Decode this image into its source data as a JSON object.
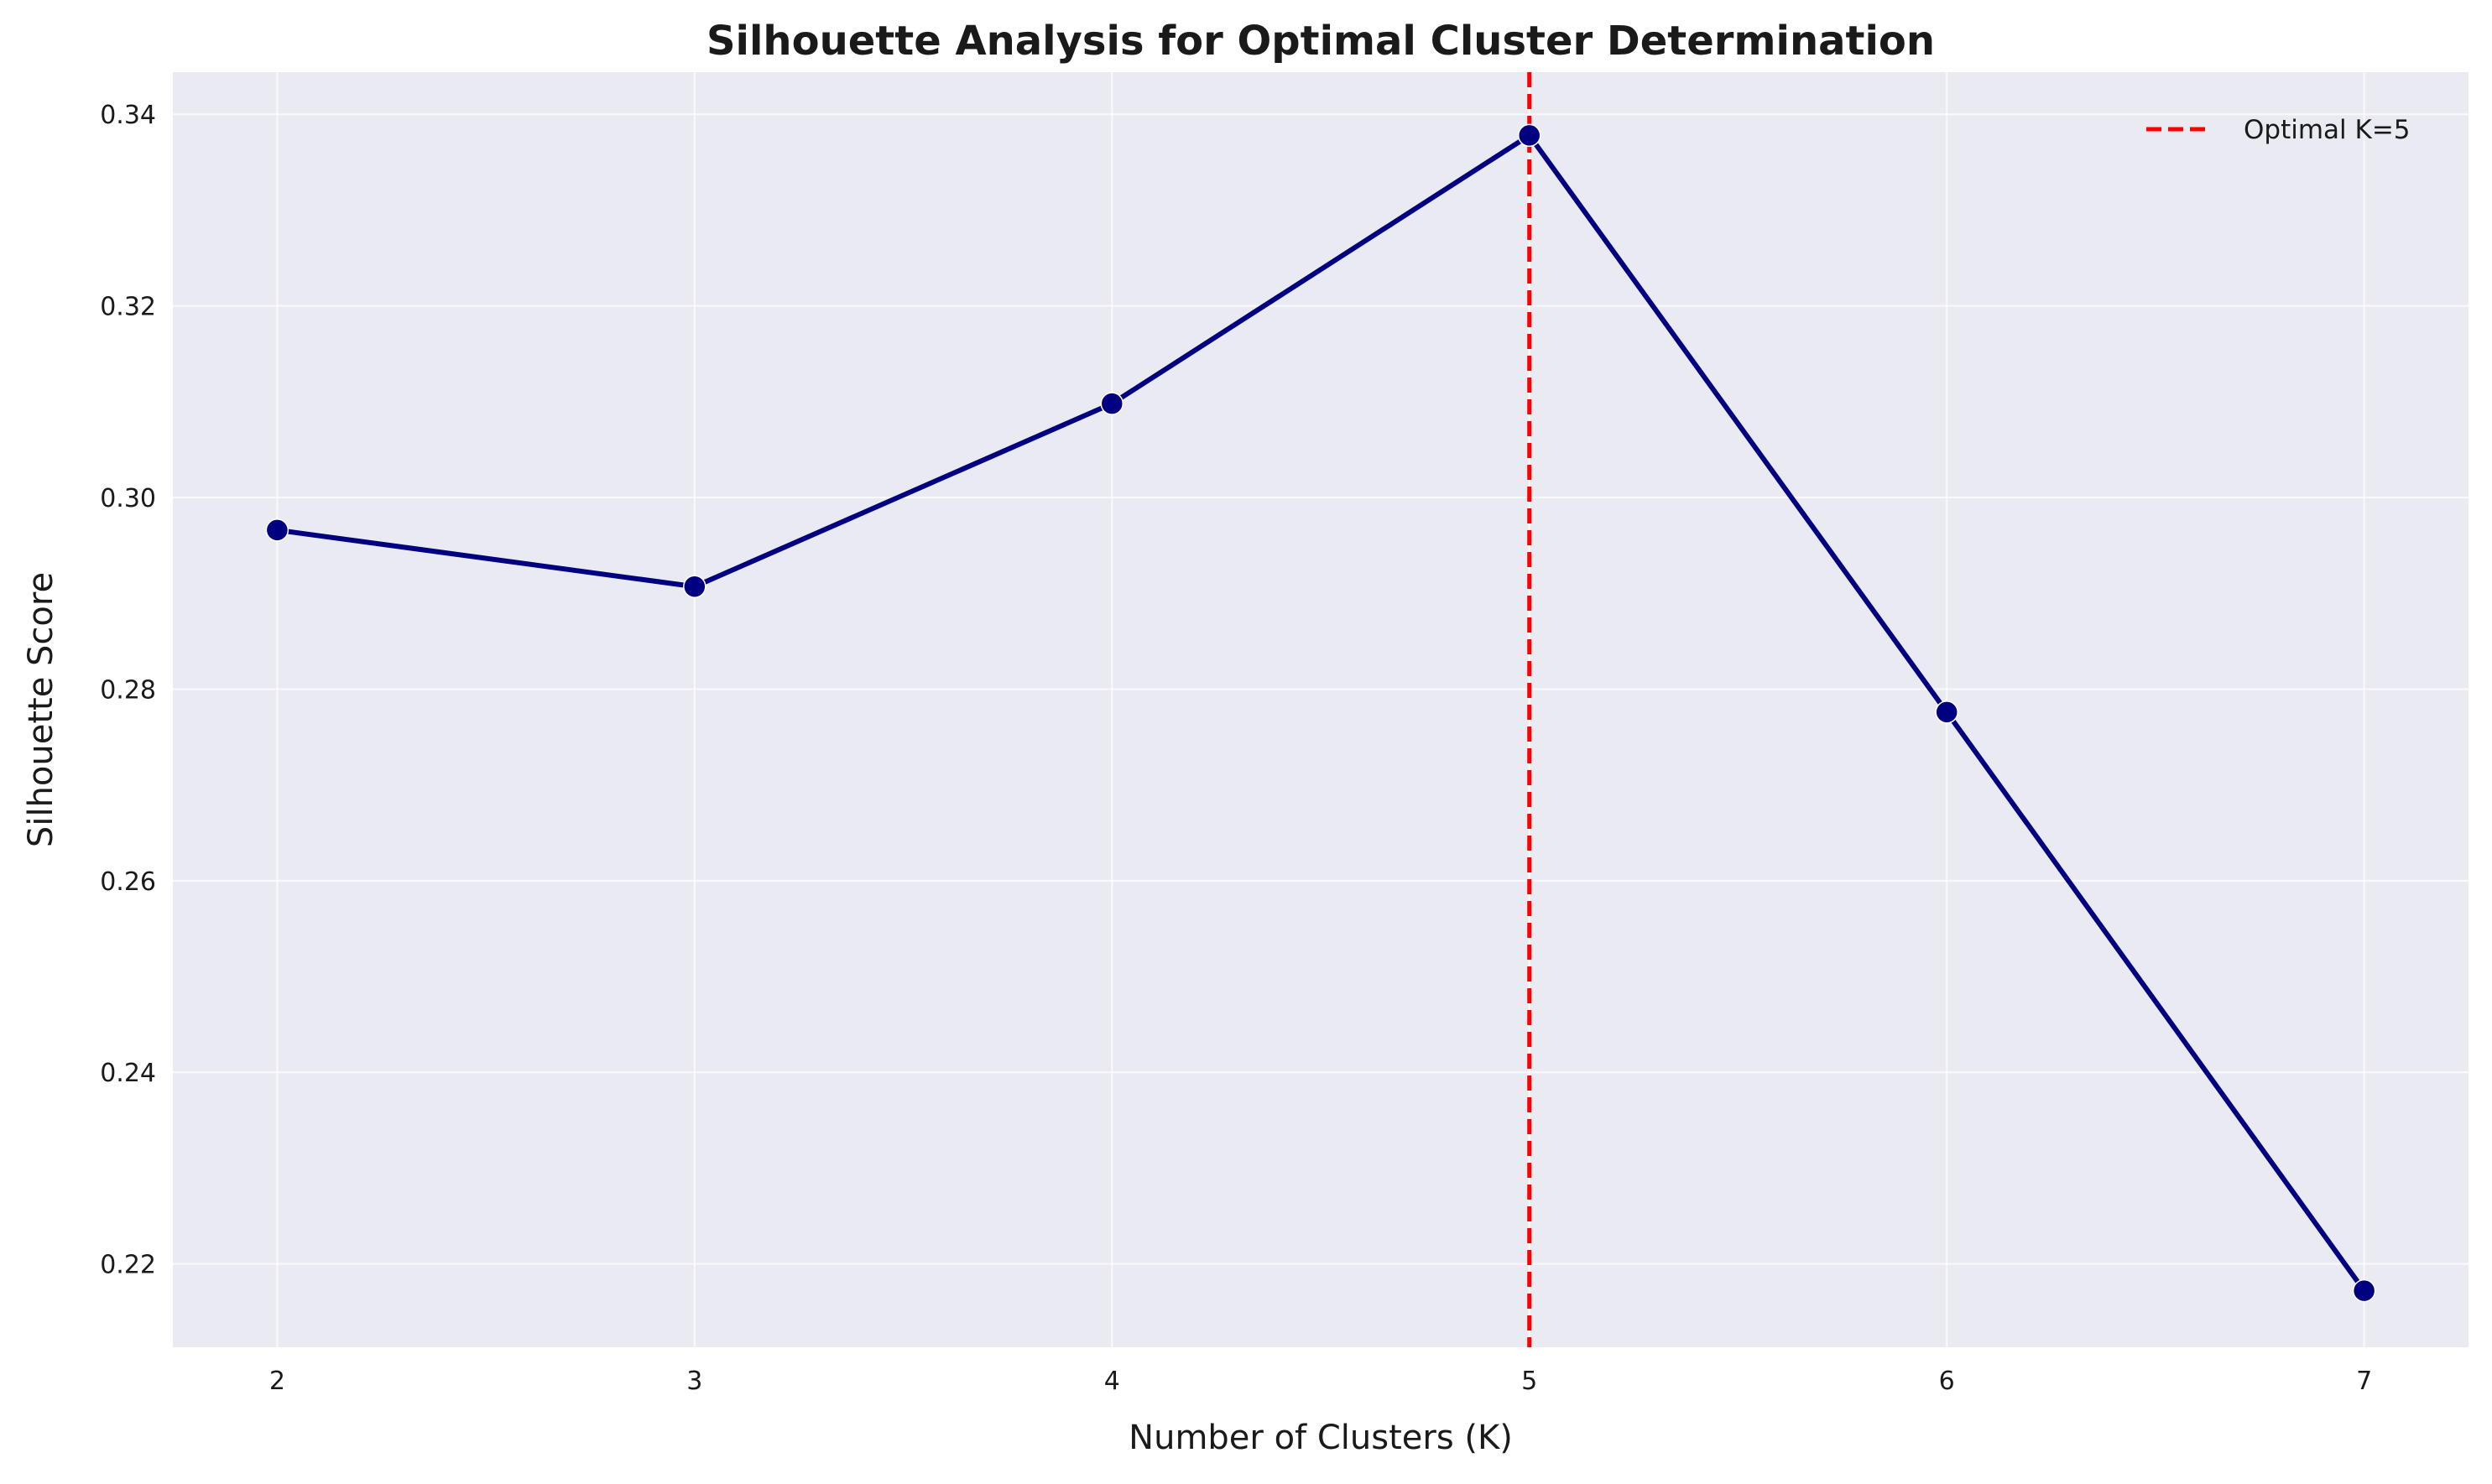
{
  "chart_data": {
    "type": "line",
    "title": "Silhouette Analysis for Optimal Cluster Determination",
    "xlabel": "Number of Clusters (K)",
    "ylabel": "Silhouette Score",
    "x": [
      2,
      3,
      4,
      5,
      6,
      7
    ],
    "x_ticks": [
      "2",
      "3",
      "4",
      "5",
      "6",
      "7"
    ],
    "y_ticks": [
      "0.22",
      "0.24",
      "0.26",
      "0.28",
      "0.30",
      "0.32",
      "0.34"
    ],
    "xlim": [
      1.75,
      7.25
    ],
    "ylim": [
      0.2113,
      0.3444
    ],
    "series": [
      {
        "values": [
          0.2966,
          0.2907,
          0.3098,
          0.3378,
          0.2776,
          0.2172
        ],
        "color": "#000080",
        "marker": "circle"
      }
    ],
    "reference_line": {
      "orientation": "vertical",
      "x": 5,
      "label": "Optimal K=5",
      "color": "#ff0000",
      "style": "dashed"
    },
    "legend": {
      "position": "top-right"
    },
    "grid": true,
    "background_color": "#eaeaf2"
  }
}
